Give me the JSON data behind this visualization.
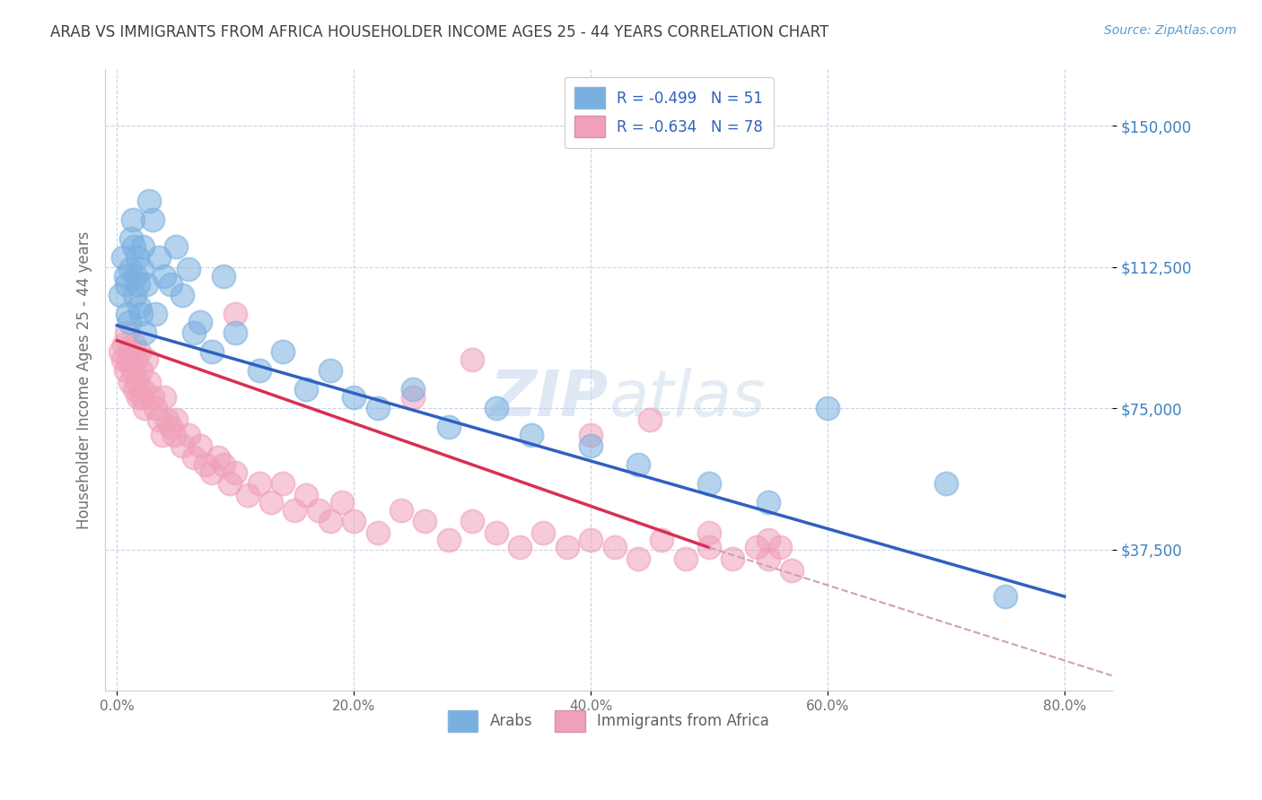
{
  "title": "ARAB VS IMMIGRANTS FROM AFRICA HOUSEHOLDER INCOME AGES 25 - 44 YEARS CORRELATION CHART",
  "source": "Source: ZipAtlas.com",
  "ylabel": "Householder Income Ages 25 - 44 years",
  "xlabel_ticks": [
    "0.0%",
    "20.0%",
    "40.0%",
    "60.0%",
    "80.0%"
  ],
  "xlabel_vals": [
    0.0,
    0.2,
    0.4,
    0.6,
    0.8
  ],
  "ytick_labels": [
    "$150,000",
    "$112,500",
    "$75,000",
    "$37,500"
  ],
  "ytick_vals": [
    150000,
    112500,
    75000,
    37500
  ],
  "ylim": [
    0,
    165000
  ],
  "xlim": [
    -0.01,
    0.84
  ],
  "blue_scatter_color": "#7ab0e0",
  "pink_scatter_color": "#f0a0b8",
  "blue_line_color": "#3060c0",
  "pink_line_color": "#d83050",
  "dashed_line_color": "#d0a0b0",
  "title_color": "#404040",
  "axis_label_color": "#707070",
  "ytick_color": "#4080c0",
  "source_color": "#5b9bd5",
  "grid_color": "#c8d4e8",
  "legend_text_color": "#3060c0",
  "bottom_legend_color": "#606060",
  "arab_x": [
    0.003,
    0.005,
    0.007,
    0.008,
    0.009,
    0.01,
    0.011,
    0.012,
    0.013,
    0.014,
    0.015,
    0.016,
    0.017,
    0.018,
    0.019,
    0.02,
    0.021,
    0.022,
    0.023,
    0.025,
    0.027,
    0.03,
    0.032,
    0.035,
    0.04,
    0.045,
    0.05,
    0.055,
    0.06,
    0.065,
    0.07,
    0.08,
    0.09,
    0.1,
    0.12,
    0.14,
    0.16,
    0.18,
    0.2,
    0.22,
    0.25,
    0.28,
    0.32,
    0.35,
    0.4,
    0.44,
    0.5,
    0.55,
    0.6,
    0.7,
    0.75
  ],
  "arab_y": [
    105000,
    115000,
    110000,
    108000,
    100000,
    98000,
    112000,
    120000,
    125000,
    118000,
    105000,
    110000,
    115000,
    108000,
    102000,
    100000,
    112000,
    118000,
    95000,
    108000,
    130000,
    125000,
    100000,
    115000,
    110000,
    108000,
    118000,
    105000,
    112000,
    95000,
    98000,
    90000,
    110000,
    95000,
    85000,
    90000,
    80000,
    85000,
    78000,
    75000,
    80000,
    70000,
    75000,
    68000,
    65000,
    60000,
    55000,
    50000,
    75000,
    55000,
    25000
  ],
  "africa_x": [
    0.003,
    0.005,
    0.006,
    0.007,
    0.008,
    0.009,
    0.01,
    0.011,
    0.012,
    0.013,
    0.014,
    0.015,
    0.016,
    0.017,
    0.018,
    0.019,
    0.02,
    0.021,
    0.022,
    0.023,
    0.025,
    0.027,
    0.03,
    0.032,
    0.035,
    0.038,
    0.04,
    0.042,
    0.045,
    0.048,
    0.05,
    0.055,
    0.06,
    0.065,
    0.07,
    0.075,
    0.08,
    0.085,
    0.09,
    0.095,
    0.1,
    0.11,
    0.12,
    0.13,
    0.14,
    0.15,
    0.16,
    0.17,
    0.18,
    0.19,
    0.2,
    0.22,
    0.24,
    0.26,
    0.28,
    0.3,
    0.32,
    0.34,
    0.36,
    0.38,
    0.4,
    0.42,
    0.44,
    0.46,
    0.48,
    0.5,
    0.52,
    0.54,
    0.55,
    0.57,
    0.1,
    0.25,
    0.3,
    0.4,
    0.45,
    0.5,
    0.55,
    0.56
  ],
  "africa_y": [
    90000,
    88000,
    92000,
    85000,
    95000,
    88000,
    90000,
    82000,
    88000,
    85000,
    92000,
    80000,
    88000,
    82000,
    78000,
    90000,
    85000,
    78000,
    80000,
    75000,
    88000,
    82000,
    78000,
    75000,
    72000,
    68000,
    78000,
    72000,
    70000,
    68000,
    72000,
    65000,
    68000,
    62000,
    65000,
    60000,
    58000,
    62000,
    60000,
    55000,
    58000,
    52000,
    55000,
    50000,
    55000,
    48000,
    52000,
    48000,
    45000,
    50000,
    45000,
    42000,
    48000,
    45000,
    40000,
    45000,
    42000,
    38000,
    42000,
    38000,
    40000,
    38000,
    35000,
    40000,
    35000,
    38000,
    35000,
    38000,
    35000,
    32000,
    100000,
    78000,
    88000,
    68000,
    72000,
    42000,
    40000,
    38000
  ],
  "blue_line_x0": 0.0,
  "blue_line_x1": 0.8,
  "blue_line_y0": 97000,
  "blue_line_y1": 25000,
  "pink_line_x0": 0.0,
  "pink_line_x1": 0.5,
  "pink_line_y0": 93000,
  "pink_line_y1": 38000,
  "dashed_line_x0": 0.5,
  "dashed_line_x1": 0.84,
  "dashed_line_y0": 38000,
  "dashed_line_y1": 4000,
  "watermark_zip": "ZIP",
  "watermark_atlas": "atlas"
}
